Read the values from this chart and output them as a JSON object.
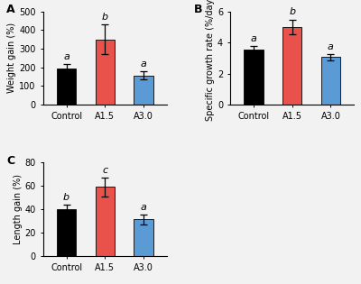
{
  "categories": [
    "Control",
    "A1.5",
    "A3.0"
  ],
  "bar_colors": [
    "#000000",
    "#e8524a",
    "#5b9bd5"
  ],
  "panel_A": {
    "values": [
      192,
      350,
      157
    ],
    "errors": [
      25,
      80,
      20
    ],
    "ylabel": "Weight gain (%)",
    "ylim": [
      0,
      500
    ],
    "yticks": [
      0,
      100,
      200,
      300,
      400,
      500
    ],
    "letters": [
      "a",
      "b",
      "a"
    ],
    "label": "A"
  },
  "panel_B": {
    "values": [
      3.55,
      5.0,
      3.05
    ],
    "errors": [
      0.22,
      0.48,
      0.18
    ],
    "ylabel": "Specific growth rate (%/day)",
    "ylim": [
      0,
      6
    ],
    "yticks": [
      0,
      2,
      4,
      6
    ],
    "letters": [
      "a",
      "b",
      "a"
    ],
    "label": "B"
  },
  "panel_C": {
    "values": [
      40,
      59,
      31
    ],
    "errors": [
      4,
      8,
      4
    ],
    "ylabel": "Length gain (%)",
    "ylim": [
      0,
      80
    ],
    "yticks": [
      0,
      20,
      40,
      60,
      80
    ],
    "letters": [
      "b",
      "c",
      "a"
    ],
    "label": "C"
  },
  "letter_color": "#000000",
  "letter_fontsize": 8,
  "tick_fontsize": 7,
  "ylabel_fontsize": 7,
  "panel_label_fontsize": 9,
  "bar_width": 0.5,
  "background_color": "#f2f2f2"
}
